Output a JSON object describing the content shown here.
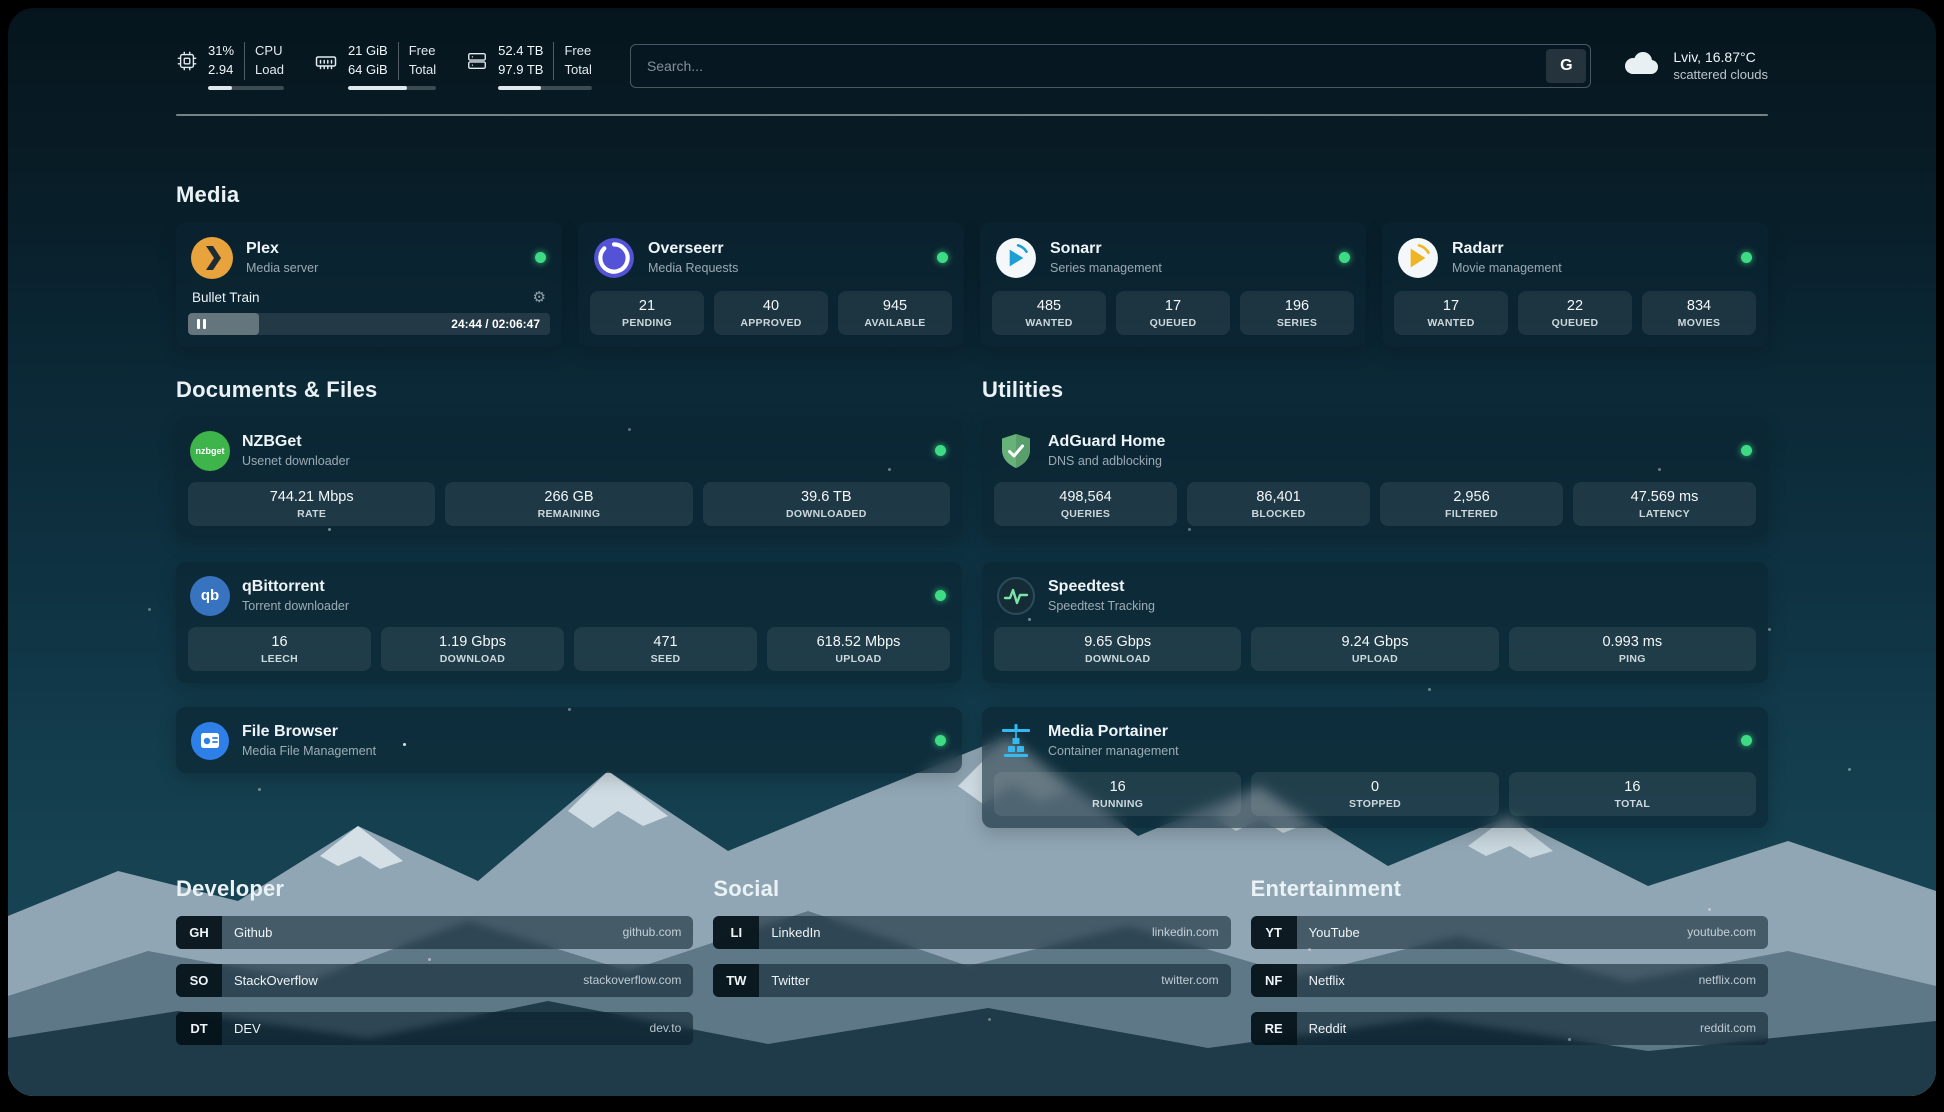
{
  "topbar": {
    "cpu": {
      "value1": "31%",
      "value2": "2.94",
      "label1": "CPU",
      "label2": "Load",
      "bar_percent": 31
    },
    "ram": {
      "value1": "21 GiB",
      "value2": "64 GiB",
      "label1": "Free",
      "label2": "Total",
      "bar_percent": 67
    },
    "disk": {
      "value1": "52.4 TB",
      "value2": "97.9 TB",
      "label1": "Free",
      "label2": "Total",
      "bar_percent": 46
    },
    "search": {
      "placeholder": "Search...",
      "button_label": "G"
    },
    "weather": {
      "location": "Lviv, 16.87°C",
      "condition": "scattered clouds"
    }
  },
  "media": {
    "title": "Media",
    "plex": {
      "name": "Plex",
      "subtitle": "Media server",
      "now_playing": "Bullet Train",
      "time": "24:44 / 02:06:47",
      "progress_percent": 19.5
    },
    "cards": [
      {
        "name": "Overseerr",
        "subtitle": "Media Requests",
        "stats": [
          {
            "value": "21",
            "label": "PENDING"
          },
          {
            "value": "40",
            "label": "APPROVED"
          },
          {
            "value": "945",
            "label": "AVAILABLE"
          }
        ]
      },
      {
        "name": "Sonarr",
        "subtitle": "Series management",
        "stats": [
          {
            "value": "485",
            "label": "WANTED"
          },
          {
            "value": "17",
            "label": "QUEUED"
          },
          {
            "value": "196",
            "label": "SERIES"
          }
        ]
      },
      {
        "name": "Radarr",
        "subtitle": "Movie management",
        "stats": [
          {
            "value": "17",
            "label": "WANTED"
          },
          {
            "value": "22",
            "label": "QUEUED"
          },
          {
            "value": "834",
            "label": "MOVIES"
          }
        ]
      }
    ]
  },
  "documents": {
    "title": "Documents & Files",
    "nzbget": {
      "name": "NZBGet",
      "subtitle": "Usenet downloader",
      "badge": "nzbget",
      "stats": [
        {
          "value": "744.21 Mbps",
          "label": "RATE"
        },
        {
          "value": "266 GB",
          "label": "REMAINING"
        },
        {
          "value": "39.6 TB",
          "label": "DOWNLOADED"
        }
      ]
    },
    "qbittorrent": {
      "name": "qBittorrent",
      "subtitle": "Torrent downloader",
      "badge": "qb",
      "stats": [
        {
          "value": "16",
          "label": "LEECH"
        },
        {
          "value": "1.19 Gbps",
          "label": "DOWNLOAD"
        },
        {
          "value": "471",
          "label": "SEED"
        },
        {
          "value": "618.52 Mbps",
          "label": "UPLOAD"
        }
      ]
    },
    "filebrowser": {
      "name": "File Browser",
      "subtitle": "Media File Management"
    }
  },
  "utilities": {
    "title": "Utilities",
    "adguard": {
      "name": "AdGuard Home",
      "subtitle": "DNS and adblocking",
      "stats": [
        {
          "value": "498,564",
          "label": "QUERIES"
        },
        {
          "value": "86,401",
          "label": "BLOCKED"
        },
        {
          "value": "2,956",
          "label": "FILTERED"
        },
        {
          "value": "47.569 ms",
          "label": "LATENCY"
        }
      ]
    },
    "speedtest": {
      "name": "Speedtest",
      "subtitle": "Speedtest Tracking",
      "stats": [
        {
          "value": "9.65 Gbps",
          "label": "DOWNLOAD"
        },
        {
          "value": "9.24 Gbps",
          "label": "UPLOAD"
        },
        {
          "value": "0.993 ms",
          "label": "PING"
        }
      ]
    },
    "portainer": {
      "name": "Media Portainer",
      "subtitle": "Container management",
      "stats": [
        {
          "value": "16",
          "label": "RUNNING"
        },
        {
          "value": "0",
          "label": "STOPPED"
        },
        {
          "value": "16",
          "label": "TOTAL"
        }
      ]
    }
  },
  "bookmarks": [
    {
      "title": "Developer",
      "items": [
        {
          "abbr": "GH",
          "name": "Github",
          "url": "github.com"
        },
        {
          "abbr": "SO",
          "name": "StackOverflow",
          "url": "stackoverflow.com"
        },
        {
          "abbr": "DT",
          "name": "DEV",
          "url": "dev.to"
        }
      ]
    },
    {
      "title": "Social",
      "items": [
        {
          "abbr": "LI",
          "name": "LinkedIn",
          "url": "linkedin.com"
        },
        {
          "abbr": "TW",
          "name": "Twitter",
          "url": "twitter.com"
        }
      ]
    },
    {
      "title": "Entertainment",
      "items": [
        {
          "abbr": "YT",
          "name": "YouTube",
          "url": "youtube.com"
        },
        {
          "abbr": "NF",
          "name": "Netflix",
          "url": "netflix.com"
        },
        {
          "abbr": "RE",
          "name": "Reddit",
          "url": "reddit.com"
        }
      ]
    }
  ],
  "colors": {
    "status_online": "#3ddc84",
    "plex_amber": "#e8a33d",
    "background_teal": "#0f3444"
  }
}
